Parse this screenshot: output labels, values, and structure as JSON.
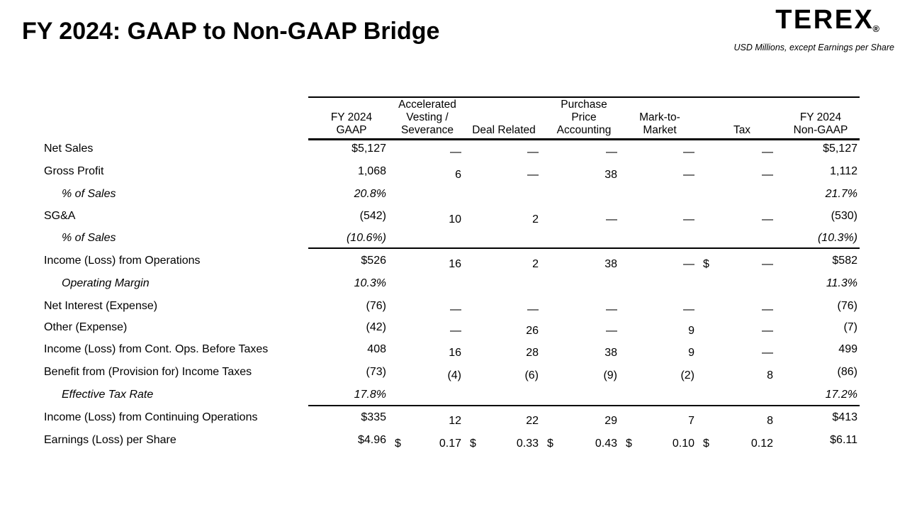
{
  "slide": {
    "title": "FY 2024: GAAP to Non-GAAP Bridge",
    "logo_text": "TEREX",
    "logo_registered_mark": "®",
    "units_note": "USD Millions, except Earnings per Share",
    "text_color": "#000000",
    "background_color": "#ffffff"
  },
  "table": {
    "column_headers": [
      {
        "lines": [
          "FY 2024",
          "GAAP"
        ]
      },
      {
        "lines": [
          "Accelerated",
          "Vesting /",
          "Severance"
        ]
      },
      {
        "lines": [
          "Deal Related"
        ]
      },
      {
        "lines": [
          "Purchase",
          "Price",
          "Accounting"
        ]
      },
      {
        "lines": [
          "Mark-to-",
          "Market"
        ]
      },
      {
        "lines": [
          "Tax"
        ]
      },
      {
        "lines": [
          "FY 2024",
          "Non-GAAP"
        ]
      }
    ],
    "rows": [
      {
        "label": "Net Sales",
        "italic": false,
        "indent": false,
        "cells": [
          "$5,127",
          "—",
          "—",
          "—",
          "—",
          "—",
          "$5,127"
        ]
      },
      {
        "label": "Gross Profit",
        "italic": false,
        "indent": false,
        "cells": [
          "1,068",
          "6",
          "—",
          "38",
          "—",
          "—",
          "1,112"
        ]
      },
      {
        "label": "% of Sales",
        "italic": true,
        "indent": true,
        "cells": [
          "20.8%",
          "",
          "",
          "",
          "",
          "",
          "21.7%"
        ]
      },
      {
        "label": "SG&A",
        "italic": false,
        "indent": false,
        "cells": [
          "(542)",
          "10",
          "2",
          "—",
          "—",
          "—",
          "(530)"
        ]
      },
      {
        "label": "% of Sales",
        "italic": true,
        "indent": true,
        "cells": [
          "(10.6%)",
          "",
          "",
          "",
          "",
          "",
          "(10.3%)"
        ]
      },
      {
        "label": "Income (Loss) from Operations",
        "italic": false,
        "indent": false,
        "cells": [
          "$526",
          "16",
          "2",
          "38",
          "—",
          {
            "pre": "$",
            "v": "—"
          },
          "$582"
        ]
      },
      {
        "label": "Operating Margin",
        "italic": true,
        "indent": true,
        "cells": [
          "10.3%",
          "",
          "",
          "",
          "",
          "",
          "11.3%"
        ]
      },
      {
        "label": "Net Interest (Expense)",
        "italic": false,
        "indent": false,
        "cells": [
          "(76)",
          "—",
          "—",
          "—",
          "—",
          "—",
          "(76)"
        ]
      },
      {
        "label": "Other (Expense)",
        "italic": false,
        "indent": false,
        "cells": [
          "(42)",
          "—",
          "26",
          "—",
          "9",
          "—",
          "(7)"
        ]
      },
      {
        "label": "Income (Loss) from Cont. Ops. Before Taxes",
        "italic": false,
        "indent": false,
        "cells": [
          "408",
          "16",
          "28",
          "38",
          "9",
          "—",
          "499"
        ]
      },
      {
        "label": "Benefit from (Provision for) Income Taxes",
        "italic": false,
        "indent": false,
        "cells": [
          "(73)",
          "(4)",
          "(6)",
          "(9)",
          "(2)",
          "8",
          "(86)"
        ]
      },
      {
        "label": "Effective Tax Rate",
        "italic": true,
        "indent": true,
        "cells": [
          "17.8%",
          "",
          "",
          "",
          "",
          "",
          "17.2%"
        ]
      },
      {
        "label": "Income (Loss) from Continuing Operations",
        "italic": false,
        "indent": false,
        "cells": [
          "$335",
          "12",
          "22",
          "29",
          "7",
          "8",
          "$413"
        ]
      },
      {
        "label": "Earnings (Loss) per Share",
        "italic": false,
        "indent": false,
        "cells": [
          "$4.96",
          {
            "pre": "$",
            "v": "0.17"
          },
          {
            "pre": "$",
            "v": "0.33"
          },
          {
            "pre": "$",
            "v": "0.43"
          },
          {
            "pre": "$",
            "v": "0.10"
          },
          {
            "pre": "$",
            "v": "0.12"
          },
          "$6.11"
        ]
      }
    ]
  }
}
